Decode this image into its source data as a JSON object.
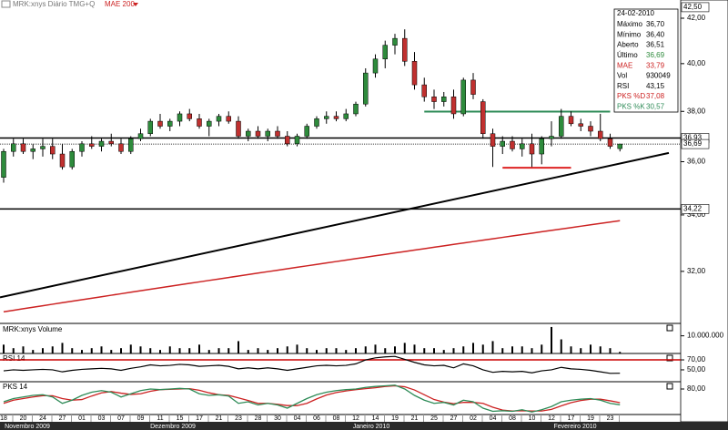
{
  "chart_data": {
    "type": "candlestick",
    "legend": "MRK:xnys Diário TMG+Q",
    "log_scale": true,
    "categories": [
      "18",
      null,
      "20",
      null,
      "24",
      null,
      "27",
      null,
      "01",
      null,
      "03",
      null,
      "07",
      null,
      "09",
      null,
      "11",
      null,
      "15",
      null,
      "17",
      null,
      "21",
      null,
      "23",
      null,
      "28",
      null,
      "30",
      null,
      "04",
      null,
      "06",
      null,
      "08",
      null,
      "12",
      null,
      "14",
      null,
      "19",
      null,
      "21",
      null,
      "25",
      null,
      "27",
      null,
      "02",
      null,
      "04",
      null,
      "08",
      null,
      "10",
      null,
      "12",
      null,
      "17",
      null,
      "19",
      null,
      "23",
      null
    ],
    "months": [
      "Novembro 2009",
      "Dezembro 2009",
      "Janeiro 2010",
      "Fevereiro 2010"
    ],
    "ohlc": [
      [
        35.4,
        36.5,
        35.2,
        36.4
      ],
      [
        36.4,
        36.9,
        36.2,
        36.7
      ],
      [
        36.7,
        36.9,
        36.3,
        36.4
      ],
      [
        36.4,
        36.7,
        36.1,
        36.5
      ],
      [
        36.5,
        36.9,
        36.2,
        36.6
      ],
      [
        36.6,
        36.9,
        36.1,
        36.3
      ],
      [
        36.3,
        36.7,
        35.7,
        35.8
      ],
      [
        35.8,
        36.5,
        35.7,
        36.4
      ],
      [
        36.4,
        36.8,
        36.2,
        36.7
      ],
      [
        36.7,
        37.0,
        36.5,
        36.6
      ],
      [
        36.6,
        36.9,
        36.4,
        36.8
      ],
      [
        36.8,
        37.1,
        36.6,
        36.7
      ],
      [
        36.7,
        36.9,
        36.3,
        36.4
      ],
      [
        36.4,
        37.0,
        36.3,
        36.9
      ],
      [
        36.9,
        37.3,
        36.8,
        37.1
      ],
      [
        37.1,
        37.7,
        37.0,
        37.6
      ],
      [
        37.6,
        37.9,
        37.3,
        37.4
      ],
      [
        37.4,
        37.7,
        37.2,
        37.6
      ],
      [
        37.6,
        38.0,
        37.4,
        37.9
      ],
      [
        37.9,
        38.1,
        37.6,
        37.7
      ],
      [
        37.7,
        37.9,
        37.3,
        37.4
      ],
      [
        37.4,
        37.7,
        37.0,
        37.6
      ],
      [
        37.6,
        37.9,
        37.4,
        37.8
      ],
      [
        37.8,
        38.0,
        37.5,
        37.6
      ],
      [
        37.6,
        37.8,
        36.9,
        37.0
      ],
      [
        37.0,
        37.3,
        36.8,
        37.2
      ],
      [
        37.2,
        37.4,
        36.9,
        37.0
      ],
      [
        37.0,
        37.3,
        36.8,
        37.2
      ],
      [
        37.2,
        37.4,
        36.9,
        37.0
      ],
      [
        37.0,
        37.2,
        36.6,
        36.7
      ],
      [
        36.7,
        37.1,
        36.6,
        37.0
      ],
      [
        37.0,
        37.5,
        36.9,
        37.4
      ],
      [
        37.4,
        37.8,
        37.3,
        37.7
      ],
      [
        37.7,
        38.0,
        37.5,
        37.8
      ],
      [
        37.8,
        38.0,
        37.6,
        37.7
      ],
      [
        37.7,
        38.1,
        37.6,
        37.9
      ],
      [
        37.9,
        38.4,
        37.8,
        38.3
      ],
      [
        38.3,
        39.8,
        38.2,
        39.6
      ],
      [
        39.6,
        40.4,
        39.4,
        40.2
      ],
      [
        40.2,
        41.0,
        39.8,
        40.8
      ],
      [
        40.8,
        41.3,
        40.4,
        41.1
      ],
      [
        41.1,
        41.5,
        39.9,
        40.1
      ],
      [
        40.1,
        40.5,
        38.9,
        39.1
      ],
      [
        39.1,
        39.4,
        38.4,
        38.6
      ],
      [
        38.6,
        38.9,
        38.1,
        38.4
      ],
      [
        38.4,
        38.8,
        38.2,
        38.6
      ],
      [
        38.6,
        38.9,
        37.7,
        37.9
      ],
      [
        37.9,
        39.4,
        37.8,
        39.3
      ],
      [
        39.3,
        39.6,
        38.5,
        38.7
      ],
      [
        38.4,
        38.5,
        36.9,
        37.1
      ],
      [
        37.1,
        37.3,
        35.8,
        36.6
      ],
      [
        36.6,
        37.0,
        36.3,
        36.8
      ],
      [
        36.8,
        37.0,
        36.4,
        36.5
      ],
      [
        36.5,
        36.9,
        36.2,
        36.7
      ],
      [
        36.7,
        37.1,
        35.8,
        36.3
      ],
      [
        36.3,
        37.0,
        35.9,
        36.9
      ],
      [
        36.9,
        37.6,
        36.6,
        37.0
      ],
      [
        37.0,
        38.1,
        36.9,
        37.8
      ],
      [
        37.8,
        38.0,
        37.4,
        37.5
      ],
      [
        37.5,
        37.7,
        37.2,
        37.4
      ],
      [
        37.4,
        37.6,
        37.0,
        37.2
      ],
      [
        37.2,
        37.9,
        36.8,
        36.9
      ],
      [
        36.9,
        37.1,
        36.5,
        36.6
      ],
      [
        36.51,
        36.7,
        36.4,
        36.69
      ]
    ],
    "up_color": "#2e8b3c",
    "down_color": "#c0302f",
    "mae": {
      "name": "MAE 200",
      "color": "#cc2222",
      "values": [
        30.64,
        30.69,
        30.74,
        30.79,
        30.84,
        30.89,
        30.94,
        30.99,
        31.04,
        31.09,
        31.14,
        31.19,
        31.24,
        31.29,
        31.34,
        31.39,
        31.44,
        31.49,
        31.54,
        31.59,
        31.64,
        31.69,
        31.74,
        31.79,
        31.84,
        31.89,
        31.94,
        31.99,
        32.04,
        32.09,
        32.14,
        32.19,
        32.24,
        32.29,
        32.34,
        32.39,
        32.44,
        32.49,
        32.54,
        32.59,
        32.64,
        32.69,
        32.74,
        32.79,
        32.84,
        32.89,
        32.94,
        32.99,
        33.04,
        33.09,
        33.14,
        33.19,
        33.24,
        33.29,
        33.34,
        33.39,
        33.44,
        33.49,
        33.54,
        33.59,
        33.64,
        33.69,
        33.74,
        33.79
      ]
    },
    "ylim": [
      30.26,
      42.83
    ],
    "yticks": [
      {
        "value": 42,
        "label": "42,00"
      },
      {
        "value": 40,
        "label": "40,00"
      },
      {
        "value": 38,
        "label": "38,00"
      },
      {
        "value": 36,
        "label": "36,00"
      },
      {
        "value": 34,
        "label": "34,00"
      },
      {
        "value": 32,
        "label": "32,00"
      }
    ],
    "levels": [
      {
        "value": 42.5,
        "label": "42,50"
      },
      {
        "value": 36.93,
        "label": "36,93",
        "line": "solid"
      },
      {
        "value": 36.69,
        "label": "36,69",
        "line": "dotted"
      },
      {
        "value": 34.22,
        "label": "34,22",
        "line": "solid"
      }
    ],
    "trendline": [
      31.12,
      36.34
    ],
    "segments": [
      {
        "value": 37.99,
        "color": "#2e8b57",
        "from": 43,
        "to": 62
      },
      {
        "value": 35.77,
        "color": "#dd2222",
        "from": 51,
        "to": 58
      }
    ],
    "info": {
      "date": "24-02-2010",
      "rows": [
        {
          "label": "Máximo",
          "value": "36,70"
        },
        {
          "label": "Mínimo",
          "value": "36,40"
        },
        {
          "label": "Aberto",
          "value": "36,51"
        },
        {
          "label": "Último",
          "value": "36,69",
          "color": "#2e8b3c"
        },
        {
          "label": "MAE",
          "value": "33,79",
          "color": "#cc2222"
        },
        {
          "label": "Vol",
          "value": "930049"
        },
        {
          "label": "RSI",
          "value": "43,15"
        },
        {
          "label": "PKS %D",
          "value": "37,08",
          "color": "#cc2222"
        },
        {
          "label": "PKS %K",
          "value": "30,57",
          "color": "#2e8b57"
        }
      ]
    },
    "volume": {
      "title": "MRK:xnys Volume",
      "color": "#000000",
      "ylim": [
        0,
        16000000
      ],
      "yticks": [
        {
          "value": 10000000,
          "label": "10.000.000"
        }
      ],
      "values": [
        5000000,
        3000000,
        4000000,
        2000000,
        3000000,
        4000000,
        6000000,
        3000000,
        2000000,
        3000000,
        4000000,
        2000000,
        3000000,
        5000000,
        4000000,
        3000000,
        2000000,
        4000000,
        3000000,
        3000000,
        5000000,
        2000000,
        3000000,
        3000000,
        7000000,
        2000000,
        3000000,
        2000000,
        3000000,
        4000000,
        5000000,
        3000000,
        2000000,
        3000000,
        3000000,
        2000000,
        3000000,
        4000000,
        5000000,
        3000000,
        4000000,
        6000000,
        5000000,
        3000000,
        3000000,
        2000000,
        3000000,
        4000000,
        6000000,
        5000000,
        7000000,
        3000000,
        4000000,
        4000000,
        3000000,
        5000000,
        15000000,
        8000000,
        4000000,
        3000000,
        5000000,
        4000000,
        3000000,
        930049
      ]
    },
    "rsi": {
      "title": "RSI 14",
      "color": "#000000",
      "level": 70,
      "level_color": "#cc0000",
      "ylim": [
        28,
        81
      ],
      "yticks": [
        {
          "value": 70,
          "label": "70,00"
        },
        {
          "value": 50,
          "label": "50,00"
        }
      ],
      "values": [
        48,
        50,
        49,
        50,
        51,
        50,
        46,
        49,
        51,
        52,
        53,
        52,
        49,
        53,
        56,
        60,
        58,
        59,
        61,
        60,
        57,
        58,
        59,
        57,
        52,
        54,
        52,
        54,
        52,
        49,
        52,
        55,
        58,
        59,
        58,
        59,
        62,
        70,
        74,
        76,
        77,
        71,
        65,
        60,
        58,
        59,
        54,
        62,
        58,
        50,
        45,
        47,
        46,
        47,
        44,
        48,
        50,
        55,
        52,
        51,
        49,
        46,
        43,
        43.15
      ]
    },
    "stochastic": {
      "title": "PKS 14",
      "ylim": [
        0,
        100
      ],
      "yticks": [
        {
          "value": 80,
          "label": "80,00"
        }
      ],
      "series": [
        {
          "color": "#cc2222",
          "values": [
            35,
            45,
            50,
            55,
            59,
            59,
            50,
            45,
            47,
            58,
            68,
            72,
            67,
            63,
            65,
            73,
            78,
            79,
            80,
            81,
            76,
            68,
            62,
            60,
            52,
            44,
            35,
            35,
            32,
            28,
            28,
            35,
            49,
            61,
            69,
            74,
            78,
            81,
            84,
            88,
            90,
            87,
            77,
            62,
            47,
            39,
            34,
            38,
            38,
            35,
            23,
            14,
            11,
            12,
            11,
            11,
            16,
            27,
            37,
            44,
            48,
            48,
            43,
            37.08
          ]
        },
        {
          "color": "#2e8b57",
          "values": [
            40,
            50,
            55,
            60,
            62,
            55,
            35,
            45,
            60,
            70,
            75,
            70,
            55,
            65,
            75,
            80,
            78,
            80,
            82,
            80,
            65,
            60,
            62,
            58,
            35,
            40,
            30,
            35,
            30,
            20,
            35,
            50,
            62,
            70,
            75,
            78,
            80,
            85,
            88,
            90,
            92,
            80,
            60,
            45,
            35,
            38,
            30,
            45,
            40,
            20,
            10,
            12,
            10,
            15,
            8,
            15,
            25,
            40,
            45,
            48,
            50,
            45,
            35,
            30.57
          ]
        }
      ]
    }
  }
}
